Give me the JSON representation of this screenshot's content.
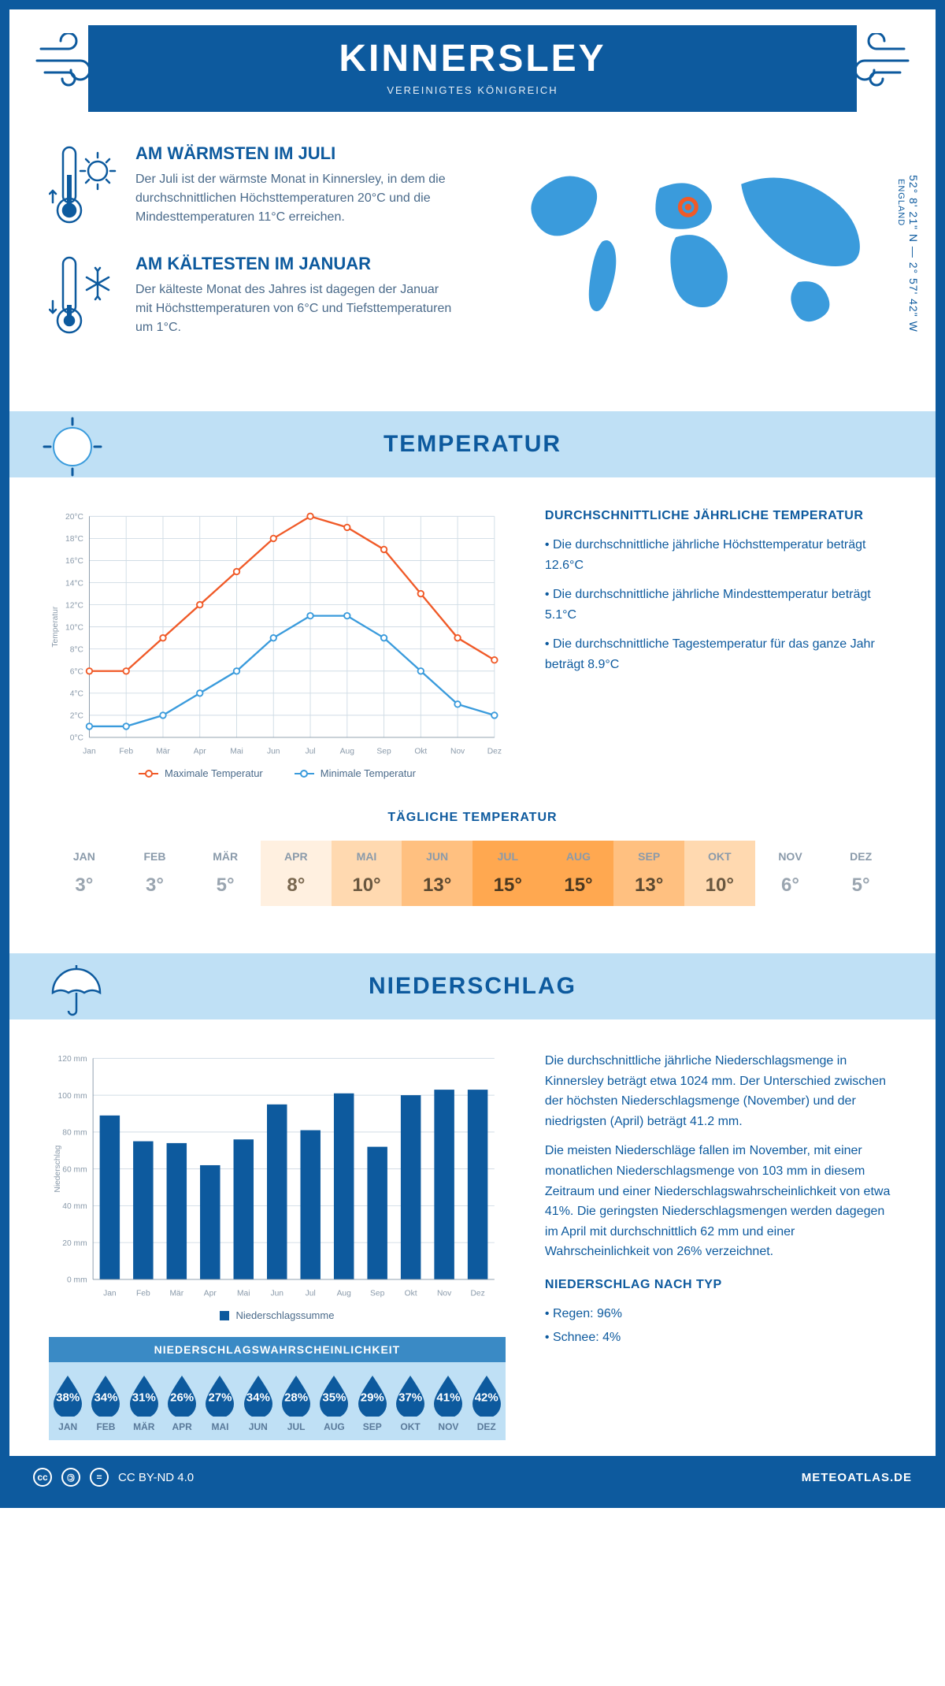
{
  "header": {
    "title": "KINNERSLEY",
    "subtitle": "VEREINIGTES KÖNIGREICH"
  },
  "coords": {
    "lat": "52° 8' 21\" N — 2° 57' 42\" W",
    "country": "ENGLAND"
  },
  "warmest": {
    "title": "AM WÄRMSTEN IM JULI",
    "text": "Der Juli ist der wärmste Monat in Kinnersley, in dem die durchschnittlichen Höchsttemperaturen 20°C und die Mindesttemperaturen 11°C erreichen."
  },
  "coldest": {
    "title": "AM KÄLTESTEN IM JANUAR",
    "text": "Der kälteste Monat des Jahres ist dagegen der Januar mit Höchsttemperaturen von 6°C und Tiefsttemperaturen um 1°C."
  },
  "sections": {
    "temp": "TEMPERATUR",
    "precip": "NIEDERSCHLAG"
  },
  "temp_chart": {
    "type": "line",
    "months": [
      "Jan",
      "Feb",
      "Mär",
      "Apr",
      "Mai",
      "Jun",
      "Jul",
      "Aug",
      "Sep",
      "Okt",
      "Nov",
      "Dez"
    ],
    "max_values": [
      6,
      6,
      9,
      12,
      15,
      18,
      20,
      19,
      17,
      13,
      9,
      7
    ],
    "min_values": [
      1,
      1,
      2,
      4,
      6,
      9,
      11,
      11,
      9,
      6,
      3,
      2
    ],
    "max_color": "#f05a28",
    "min_color": "#3a9bdc",
    "grid_color": "#d0dce5",
    "ylim": [
      0,
      20
    ],
    "ytick_step": 2,
    "ylabel": "Temperatur",
    "legend_max": "Maximale Temperatur",
    "legend_min": "Minimale Temperatur"
  },
  "temp_side": {
    "title": "DURCHSCHNITTLICHE JÄHRLICHE TEMPERATUR",
    "bullets": [
      "• Die durchschnittliche jährliche Höchsttemperatur beträgt 12.6°C",
      "• Die durchschnittliche jährliche Mindesttemperatur beträgt 5.1°C",
      "• Die durchschnittliche Tagestemperatur für das ganze Jahr beträgt 8.9°C"
    ]
  },
  "daily_temp": {
    "title": "TÄGLICHE TEMPERATUR",
    "months": [
      "JAN",
      "FEB",
      "MÄR",
      "APR",
      "MAI",
      "JUN",
      "JUL",
      "AUG",
      "SEP",
      "OKT",
      "NOV",
      "DEZ"
    ],
    "values": [
      "3°",
      "3°",
      "5°",
      "8°",
      "10°",
      "13°",
      "15°",
      "15°",
      "13°",
      "10°",
      "6°",
      "5°"
    ],
    "bg_colors": [
      "#ffffff",
      "#ffffff",
      "#ffffff",
      "#fff0e0",
      "#ffd9b0",
      "#ffc080",
      "#ffa850",
      "#ffa850",
      "#ffc080",
      "#ffd9b0",
      "#ffffff",
      "#ffffff"
    ],
    "text_colors": [
      "#9aa5b0",
      "#9aa5b0",
      "#9aa5b0",
      "#7a6850",
      "#6a5840",
      "#5a4830",
      "#4a3820",
      "#4a3820",
      "#5a4830",
      "#6a5840",
      "#9aa5b0",
      "#9aa5b0"
    ]
  },
  "precip_chart": {
    "type": "bar",
    "months": [
      "Jan",
      "Feb",
      "Mär",
      "Apr",
      "Mai",
      "Jun",
      "Jul",
      "Aug",
      "Sep",
      "Okt",
      "Nov",
      "Dez"
    ],
    "values": [
      89,
      75,
      74,
      62,
      76,
      95,
      81,
      101,
      72,
      100,
      103,
      103
    ],
    "bar_color": "#0d5a9e",
    "grid_color": "#d0dce5",
    "ylim": [
      0,
      120
    ],
    "ytick_step": 20,
    "ylabel": "Niederschlag",
    "legend": "Niederschlagssumme"
  },
  "precip_side": {
    "para1": "Die durchschnittliche jährliche Niederschlagsmenge in Kinnersley beträgt etwa 1024 mm. Der Unterschied zwischen der höchsten Niederschlagsmenge (November) und der niedrigsten (April) beträgt 41.2 mm.",
    "para2": "Die meisten Niederschläge fallen im November, mit einer monatlichen Niederschlagsmenge von 103 mm in diesem Zeitraum und einer Niederschlagswahrscheinlichkeit von etwa 41%. Die geringsten Niederschlagsmengen werden dagegen im April mit durchschnittlich 62 mm und einer Wahrscheinlichkeit von 26% verzeichnet.",
    "type_title": "NIEDERSCHLAG NACH TYP",
    "type_bullets": [
      "• Regen: 96%",
      "• Schnee: 4%"
    ]
  },
  "precip_prob": {
    "title": "NIEDERSCHLAGSWAHRSCHEINLICHKEIT",
    "months": [
      "JAN",
      "FEB",
      "MÄR",
      "APR",
      "MAI",
      "JUN",
      "JUL",
      "AUG",
      "SEP",
      "OKT",
      "NOV",
      "DEZ"
    ],
    "values": [
      "38%",
      "34%",
      "31%",
      "26%",
      "27%",
      "34%",
      "28%",
      "35%",
      "29%",
      "37%",
      "41%",
      "42%"
    ],
    "drop_color": "#0d5a9e"
  },
  "footer": {
    "license": "CC BY-ND 4.0",
    "site": "METEOATLAS.DE"
  }
}
